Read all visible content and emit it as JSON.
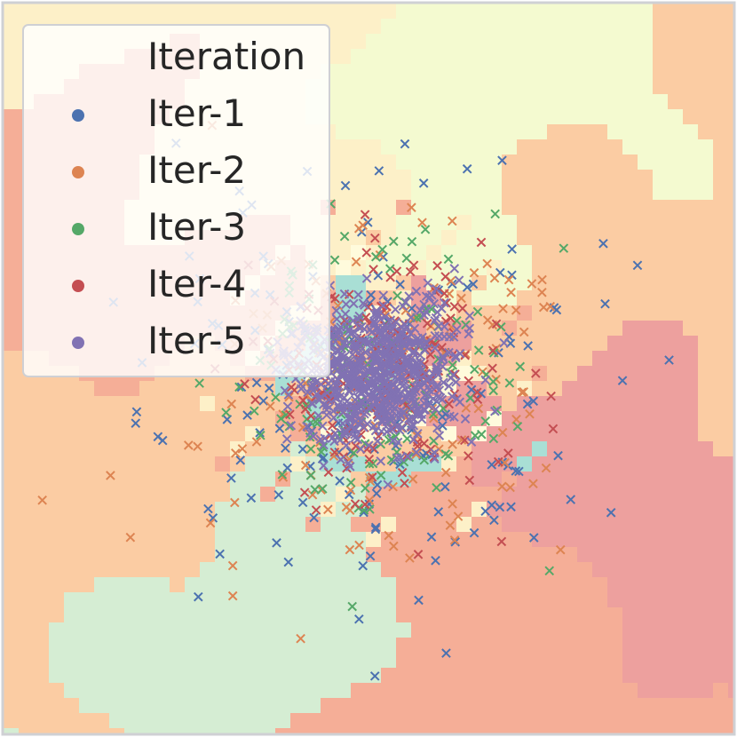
{
  "chart_data": {
    "type": "scatter",
    "title": "",
    "xlabel": "",
    "ylabel": "",
    "background": "decision-region map (pixelated class regions)",
    "grid": false,
    "axes_ticks": false,
    "marker": "x",
    "legend": {
      "title": "Iteration",
      "placement": "upper-left",
      "entries": [
        {
          "label": "Iter-1",
          "color": "#4c72b0"
        },
        {
          "label": "Iter-2",
          "color": "#dd8452"
        },
        {
          "label": "Iter-3",
          "color": "#55a868"
        },
        {
          "label": "Iter-4",
          "color": "#c44e52"
        },
        {
          "label": "Iter-5",
          "color": "#8172b3"
        }
      ]
    },
    "series": [
      {
        "name": "Iter-1",
        "color": "#4c72b0",
        "n_points": 180,
        "center": [
          0.0,
          0.0
        ],
        "spread": 1.0
      },
      {
        "name": "Iter-2",
        "color": "#dd8452",
        "n_points": 160,
        "center": [
          0.0,
          0.0
        ],
        "spread": 0.75
      },
      {
        "name": "Iter-3",
        "color": "#55a868",
        "n_points": 170,
        "center": [
          0.0,
          0.0
        ],
        "spread": 0.62
      },
      {
        "name": "Iter-4",
        "color": "#c44e52",
        "n_points": 200,
        "center": [
          0.0,
          0.0
        ],
        "spread": 0.5
      },
      {
        "name": "Iter-5",
        "color": "#8172b3",
        "n_points": 700,
        "center": [
          0.0,
          0.0
        ],
        "spread": 0.34
      }
    ],
    "region_palette": [
      "#eda09e",
      "#f5ae97",
      "#fbcca3",
      "#fdf0c8",
      "#fffbdc",
      "#f4fad0",
      "#d5edd3",
      "#a9dfd5"
    ]
  }
}
